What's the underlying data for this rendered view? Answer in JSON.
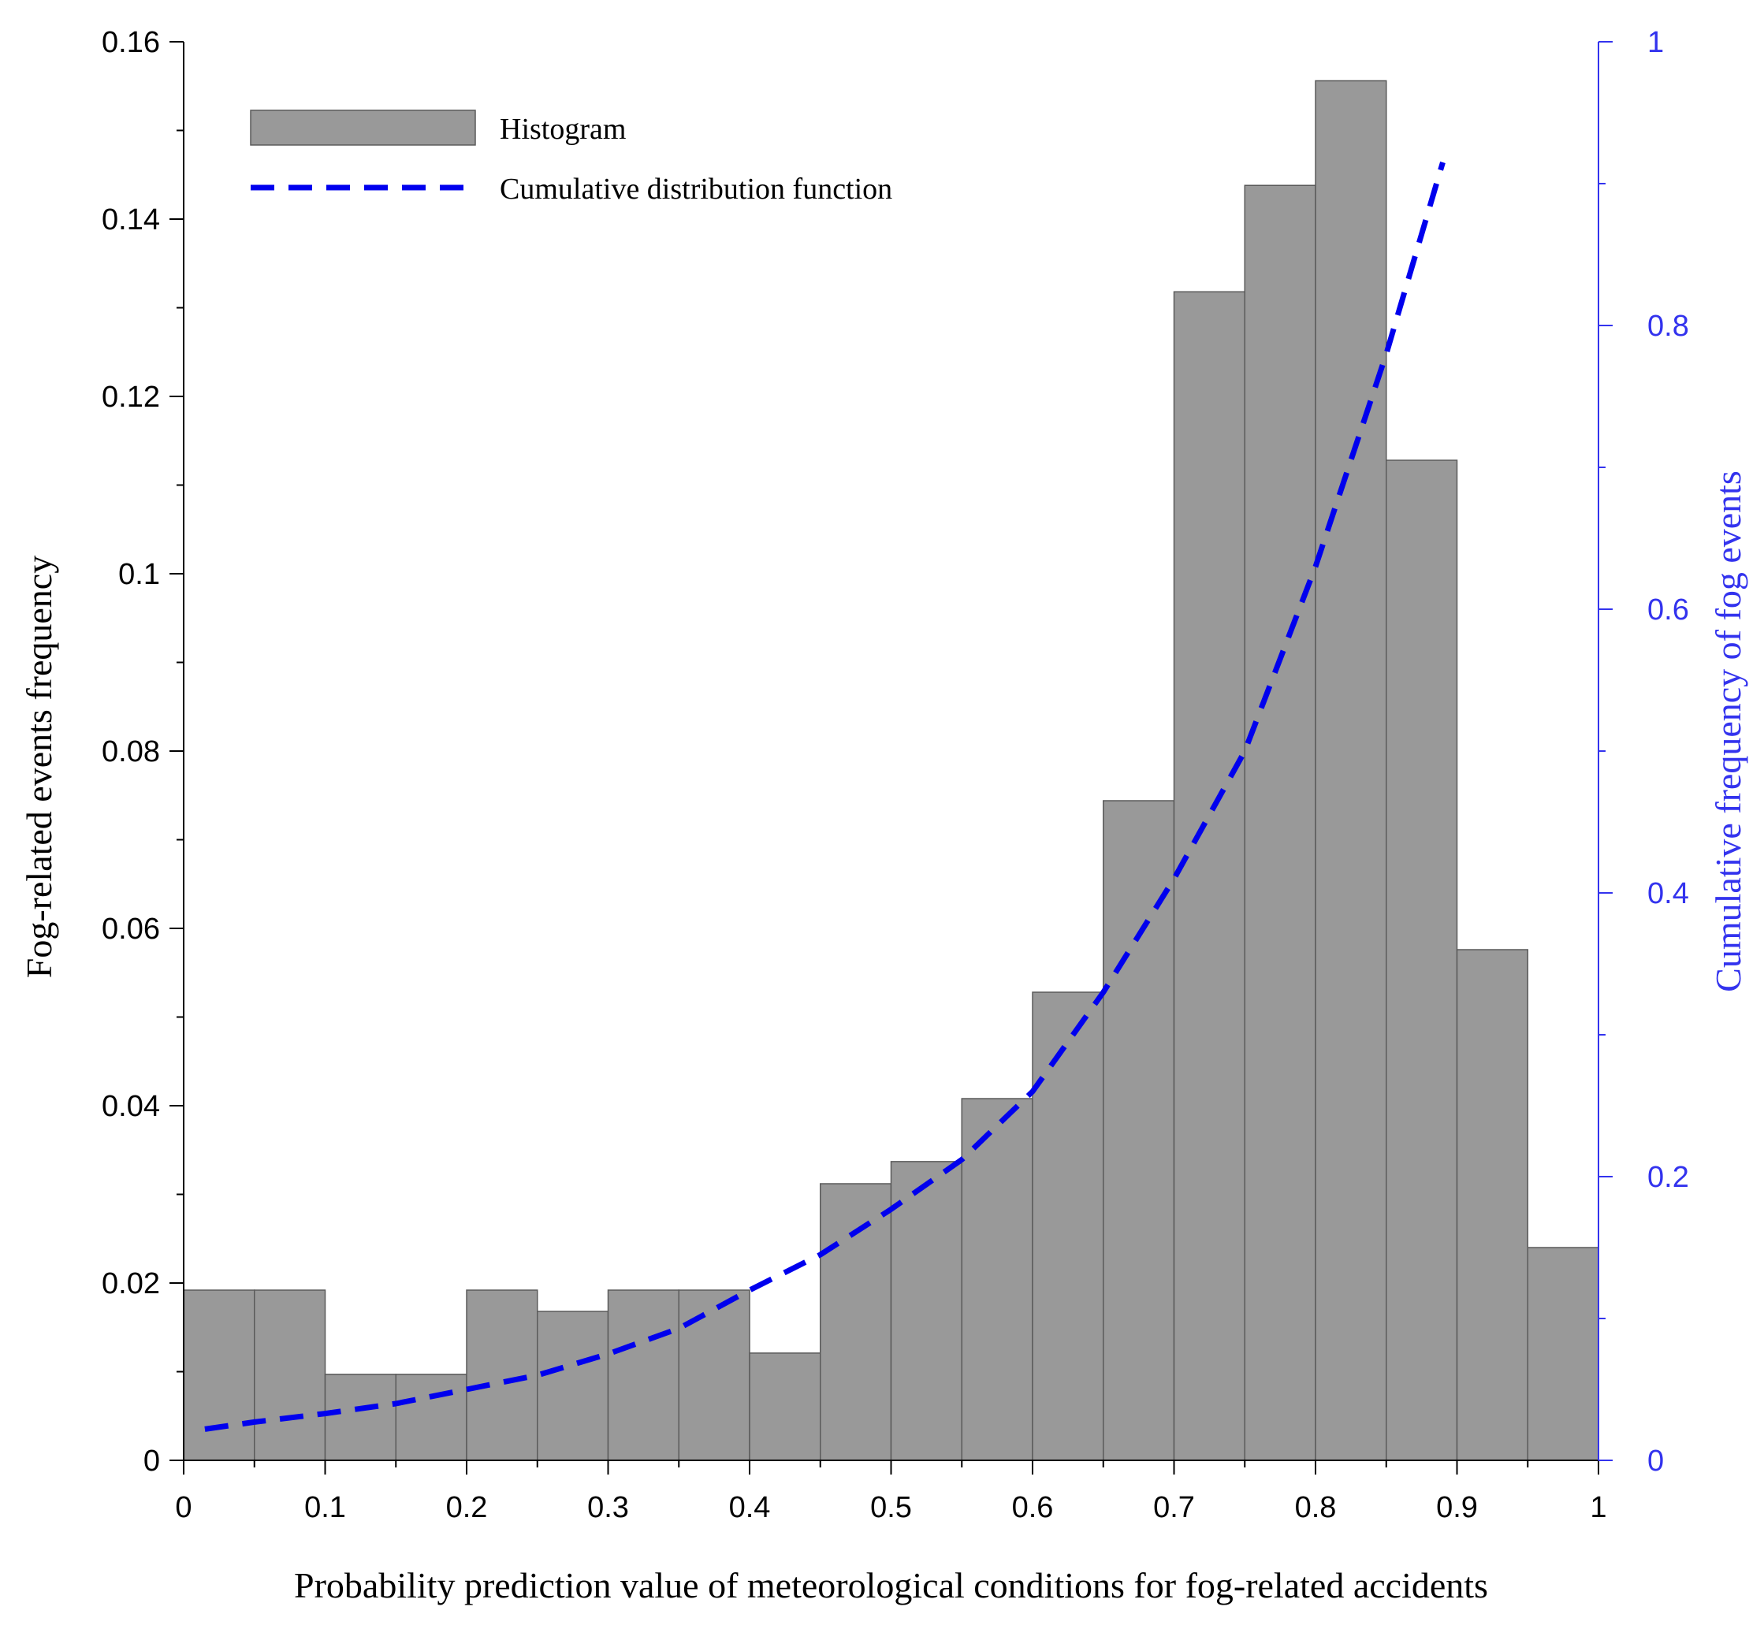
{
  "chart_data": {
    "type": "bar",
    "xlabel": "Probability prediction value of meteorological conditions for fog-related accidents",
    "ylabel": "Fog-related events frequency",
    "y2label": "Cumulative frequency of fog events",
    "xlim": [
      0,
      1
    ],
    "ylim": [
      0,
      0.16
    ],
    "y2lim": [
      0,
      1
    ],
    "x_ticks": [
      0,
      0.1,
      0.2,
      0.3,
      0.4,
      0.5,
      0.6,
      0.7,
      0.8,
      0.9,
      1
    ],
    "x_tick_labels": [
      "0",
      "0.1",
      "0.2",
      "0.3",
      "0.4",
      "0.5",
      "0.6",
      "0.7",
      "0.8",
      "0.9",
      "1"
    ],
    "y_ticks": [
      0,
      0.02,
      0.04,
      0.06,
      0.08,
      0.1,
      0.12,
      0.14,
      0.16
    ],
    "y_tick_labels": [
      "0",
      "0.02",
      "0.04",
      "0.06",
      "0.08",
      "0.1",
      "0.12",
      "0.14",
      "0.16"
    ],
    "y2_ticks": [
      0,
      0.2,
      0.4,
      0.6,
      0.8,
      1
    ],
    "y2_tick_labels": [
      "0",
      "0.2",
      "0.4",
      "0.6",
      "0.8",
      "1"
    ],
    "legend": {
      "position": "top-left",
      "entries": [
        {
          "label": "Histogram",
          "style": "bar"
        },
        {
          "label": "Cumulative distribution function",
          "style": "dashed-line"
        }
      ]
    },
    "series": [
      {
        "name": "Histogram",
        "axis": "left",
        "type": "bar",
        "bin_width": 0.05,
        "bin_starts": [
          0,
          0.05,
          0.1,
          0.15,
          0.2,
          0.25,
          0.3,
          0.35,
          0.4,
          0.45,
          0.5,
          0.55,
          0.6,
          0.65,
          0.7,
          0.75,
          0.8,
          0.85,
          0.9,
          0.95
        ],
        "values": [
          0.0192,
          0.0192,
          0.0097,
          0.0097,
          0.0192,
          0.0168,
          0.0192,
          0.0192,
          0.0121,
          0.0312,
          0.0337,
          0.0408,
          0.0528,
          0.0744,
          0.1318,
          0.1438,
          0.1556,
          0.1128,
          0.0576,
          0.024
        ]
      },
      {
        "name": "Cumulative distribution function",
        "axis": "right",
        "type": "line",
        "style": "dashed",
        "x": [
          0.015,
          0.05,
          0.1,
          0.15,
          0.2,
          0.25,
          0.3,
          0.35,
          0.4,
          0.45,
          0.5,
          0.55,
          0.6,
          0.65,
          0.7,
          0.75,
          0.8,
          0.85,
          0.89
        ],
        "values": [
          0.022,
          0.027,
          0.033,
          0.04,
          0.05,
          0.06,
          0.075,
          0.093,
          0.12,
          0.145,
          0.177,
          0.212,
          0.26,
          0.33,
          0.41,
          0.5,
          0.63,
          0.78,
          0.915
        ]
      }
    ],
    "colors": {
      "bar_fill": "#999999",
      "bar_stroke": "#5a5a5a",
      "cdf_line": "#0000ee",
      "right_axis": "#3333ee",
      "axis": "#000000"
    }
  }
}
